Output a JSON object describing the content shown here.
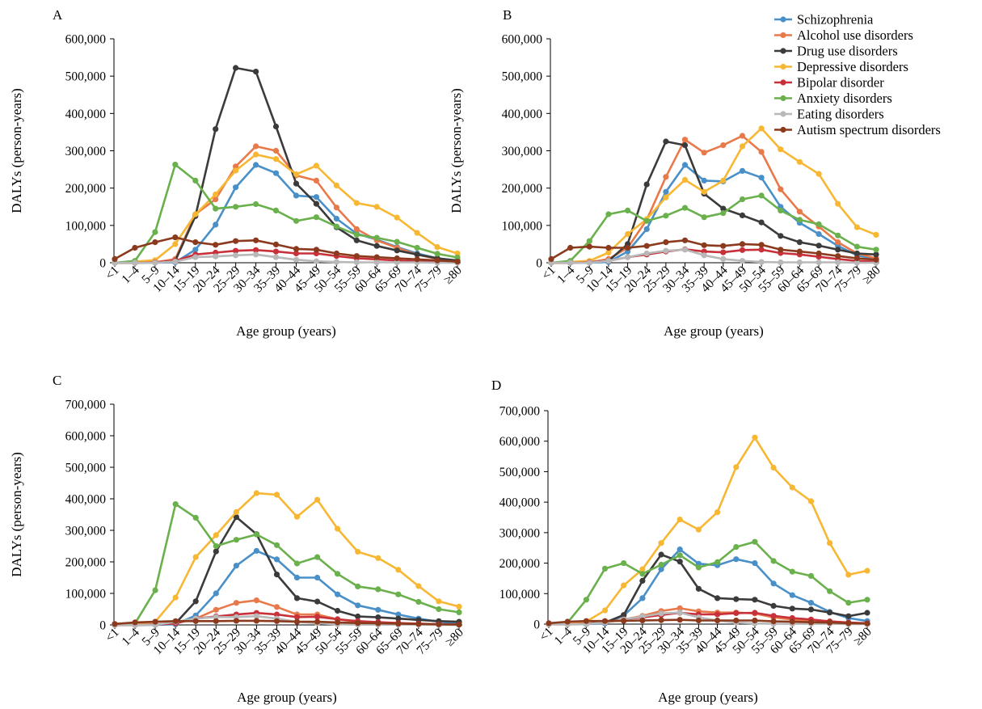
{
  "colors": {
    "Schizophrenia": "#4a90c8",
    "Alcohol use disorders": "#e8794a",
    "Drug use disorders": "#3b3b3b",
    "Depressive disorders": "#f7b733",
    "Bipolar disorder": "#c8303a",
    "Anxiety disorders": "#6ab04c",
    "Eating disorders": "#b8b8b8",
    "Autism spectrum disorders": "#8b3a1e"
  },
  "legend": {
    "placement": "top-right",
    "items": [
      "Schizophrenia",
      "Alcohol use disorders",
      "Drug use disorders",
      "Depressive disorders",
      "Bipolar disorder",
      "Anxiety disorders",
      "Eating disorders",
      "Autism spectrum disorders"
    ]
  },
  "chart_data": [
    {
      "type": "line",
      "panel": "A",
      "xlabel": "Age group (years)",
      "ylabel": "DALYs (person-years)",
      "ylim": [
        0,
        600000
      ],
      "yticks": [
        "0",
        "100,000",
        "200,000",
        "300,000",
        "400,000",
        "500,000",
        "600,000"
      ],
      "categories": [
        "<1",
        "1–4",
        "5–9",
        "10–14",
        "15–19",
        "20–24",
        "25–29",
        "30–34",
        "35–39",
        "40–44",
        "45–49",
        "50–54",
        "55–59",
        "60–64",
        "65–69",
        "70–74",
        "75–79",
        "≥80"
      ],
      "series": [
        {
          "name": "Schizophrenia",
          "values": [
            0,
            0,
            0,
            1000,
            35000,
            102000,
            202000,
            262000,
            240000,
            180000,
            176000,
            118000,
            78000,
            62000,
            42000,
            25000,
            12000,
            5000
          ]
        },
        {
          "name": "Alcohol use disorders",
          "values": [
            0,
            0,
            1000,
            10000,
            130000,
            170000,
            258000,
            312000,
            300000,
            234000,
            220000,
            148000,
            90000,
            60000,
            40000,
            22000,
            10000,
            5000
          ]
        },
        {
          "name": "Drug use disorders",
          "values": [
            0,
            0,
            1000,
            5000,
            125000,
            358000,
            522000,
            512000,
            365000,
            212000,
            158000,
            95000,
            60000,
            45000,
            33000,
            22000,
            12000,
            6000
          ]
        },
        {
          "name": "Depressive disorders",
          "values": [
            0,
            3000,
            7000,
            50000,
            130000,
            183000,
            247000,
            290000,
            278000,
            237000,
            260000,
            207000,
            160000,
            150000,
            121000,
            80000,
            42000,
            25000
          ]
        },
        {
          "name": "Bipolar disorder",
          "values": [
            0,
            0,
            1000,
            5000,
            22000,
            27000,
            32000,
            34000,
            30000,
            25000,
            25000,
            18000,
            12000,
            9000,
            6000,
            4000,
            2000,
            1000
          ]
        },
        {
          "name": "Anxiety disorders",
          "values": [
            0,
            5000,
            82000,
            263000,
            220000,
            145000,
            150000,
            157000,
            140000,
            112000,
            122000,
            97000,
            75000,
            67000,
            56000,
            40000,
            24000,
            14000
          ]
        },
        {
          "name": "Eating disorders",
          "values": [
            0,
            0,
            0,
            3000,
            15000,
            17000,
            20000,
            22000,
            15000,
            8000,
            4000,
            2000,
            1000,
            1000,
            1000,
            1000,
            0,
            0
          ]
        },
        {
          "name": "Autism spectrum disorders",
          "values": [
            10000,
            40000,
            55000,
            68000,
            55000,
            48000,
            58000,
            60000,
            49000,
            37000,
            35000,
            25000,
            18000,
            15000,
            12000,
            9000,
            6000,
            3000
          ]
        }
      ]
    },
    {
      "type": "line",
      "panel": "B",
      "xlabel": "Age group (years)",
      "ylabel": "DALYs (person-years)",
      "ylim": [
        0,
        600000
      ],
      "yticks": [
        "0",
        "100,000",
        "200,000",
        "300,000",
        "400,000",
        "500,000",
        "600,000"
      ],
      "categories": [
        "<1",
        "1–4",
        "5–9",
        "10–14",
        "15–19",
        "20–24",
        "25–29",
        "30–34",
        "35–39",
        "40–44",
        "45–49",
        "50–54",
        "55–59",
        "60–64",
        "65–69",
        "70–74",
        "75–79",
        "≥80"
      ],
      "series": [
        {
          "name": "Schizophrenia",
          "values": [
            0,
            0,
            0,
            2000,
            30000,
            90000,
            190000,
            262000,
            220000,
            218000,
            246000,
            228000,
            150000,
            107000,
            77000,
            45000,
            20000,
            10000
          ]
        },
        {
          "name": "Alcohol use disorders",
          "values": [
            0,
            0,
            1000,
            10000,
            40000,
            115000,
            230000,
            330000,
            295000,
            315000,
            340000,
            297000,
            197000,
            137000,
            97000,
            55000,
            25000,
            12000
          ]
        },
        {
          "name": "Drug use disorders",
          "values": [
            0,
            0,
            1000,
            5000,
            50000,
            210000,
            325000,
            315000,
            185000,
            145000,
            127000,
            108000,
            72000,
            55000,
            46000,
            35000,
            25000,
            22000
          ]
        },
        {
          "name": "Depressive disorders",
          "values": [
            0,
            2000,
            5000,
            27000,
            77000,
            117000,
            175000,
            222000,
            190000,
            220000,
            312000,
            360000,
            304000,
            270000,
            238000,
            158000,
            95000,
            75000
          ]
        },
        {
          "name": "Bipolar disorder",
          "values": [
            0,
            0,
            1000,
            5000,
            15000,
            22000,
            30000,
            36000,
            30000,
            28000,
            34000,
            35000,
            26000,
            22000,
            16000,
            10000,
            5000,
            3000
          ]
        },
        {
          "name": "Anxiety disorders",
          "values": [
            0,
            5000,
            58000,
            130000,
            140000,
            112000,
            126000,
            147000,
            122000,
            133000,
            170000,
            180000,
            140000,
            115000,
            103000,
            73000,
            43000,
            35000
          ]
        },
        {
          "name": "Eating disorders",
          "values": [
            0,
            0,
            0,
            5000,
            15000,
            25000,
            32000,
            35000,
            20000,
            10000,
            5000,
            2000,
            1000,
            1000,
            1000,
            1000,
            0,
            0
          ]
        },
        {
          "name": "Autism spectrum disorders",
          "values": [
            10000,
            40000,
            43000,
            40000,
            40000,
            45000,
            55000,
            60000,
            47000,
            45000,
            50000,
            48000,
            35000,
            30000,
            25000,
            18000,
            12000,
            8000
          ]
        }
      ]
    },
    {
      "type": "line",
      "panel": "C",
      "xlabel": "Age group (years)",
      "ylabel": "DALYs (person-years)",
      "ylim": [
        0,
        700000
      ],
      "yticks": [
        "0",
        "100,000",
        "200,000",
        "300,000",
        "400,000",
        "500,000",
        "600,000",
        "700,000"
      ],
      "categories": [
        "<1",
        "1–4",
        "5–9",
        "10–14",
        "15–19",
        "20–24",
        "25–29",
        "30–34",
        "35–39",
        "40–44",
        "45–49",
        "50–54",
        "55–59",
        "60–64",
        "65–69",
        "70–74",
        "75–79",
        "≥80"
      ],
      "series": [
        {
          "name": "Schizophrenia",
          "values": [
            0,
            0,
            0,
            2000,
            30000,
            100000,
            188000,
            235000,
            208000,
            150000,
            150000,
            97000,
            62000,
            48000,
            33000,
            20000,
            10000,
            5000
          ]
        },
        {
          "name": "Alcohol use disorders",
          "values": [
            0,
            0,
            1000,
            5000,
            20000,
            48000,
            70000,
            78000,
            57000,
            33000,
            33000,
            18000,
            10000,
            7000,
            5000,
            3000,
            1000,
            1000
          ]
        },
        {
          "name": "Drug use disorders",
          "values": [
            0,
            0,
            1000,
            5000,
            75000,
            233000,
            342000,
            288000,
            160000,
            85000,
            74000,
            45000,
            27000,
            24000,
            20000,
            16000,
            12000,
            10000
          ]
        },
        {
          "name": "Depressive disorders",
          "values": [
            0,
            3000,
            10000,
            87000,
            215000,
            285000,
            358000,
            418000,
            413000,
            343000,
            397000,
            305000,
            232000,
            212000,
            175000,
            123000,
            75000,
            58000
          ]
        },
        {
          "name": "Bipolar disorder",
          "values": [
            0,
            0,
            1000,
            5000,
            20000,
            27000,
            33000,
            38000,
            33000,
            25000,
            26000,
            18000,
            12000,
            9000,
            6000,
            4000,
            2000,
            1000
          ]
        },
        {
          "name": "Anxiety disorders",
          "values": [
            0,
            5000,
            110000,
            383000,
            340000,
            250000,
            270000,
            287000,
            253000,
            195000,
            215000,
            162000,
            122000,
            113000,
            97000,
            73000,
            50000,
            40000
          ]
        },
        {
          "name": "Eating disorders",
          "values": [
            0,
            0,
            0,
            10000,
            20000,
            25000,
            25000,
            28000,
            20000,
            10000,
            5000,
            2000,
            1000,
            1000,
            1000,
            1000,
            0,
            0
          ]
        },
        {
          "name": "Autism spectrum disorders",
          "values": [
            3000,
            8000,
            10000,
            12000,
            12000,
            12000,
            13000,
            13000,
            12000,
            10000,
            10000,
            8000,
            6000,
            5000,
            4000,
            3000,
            2000,
            1000
          ]
        }
      ]
    },
    {
      "type": "line",
      "panel": "D",
      "xlabel": "Age group (years)",
      "ylabel": "",
      "ylim": [
        0,
        700000
      ],
      "yticks": [
        "0",
        "100,000",
        "200,000",
        "300,000",
        "400,000",
        "500,000",
        "600,000",
        "700,000"
      ],
      "categories": [
        "<1",
        "1–4",
        "5–9",
        "10–14",
        "15–19",
        "20–24",
        "25–29",
        "30–34",
        "35–39",
        "40–44",
        "45–49",
        "50–54",
        "55–59",
        "60–64",
        "65–69",
        "70–74",
        "75–79",
        "≥80"
      ],
      "series": [
        {
          "name": "Schizophrenia",
          "values": [
            0,
            0,
            0,
            2000,
            28000,
            85000,
            180000,
            245000,
            198000,
            193000,
            213000,
            200000,
            133000,
            95000,
            70000,
            40000,
            20000,
            10000
          ]
        },
        {
          "name": "Alcohol use disorders",
          "values": [
            0,
            0,
            1000,
            5000,
            15000,
            27000,
            43000,
            52000,
            42000,
            38000,
            38000,
            35000,
            22000,
            15000,
            10000,
            5000,
            2000,
            1000
          ]
        },
        {
          "name": "Drug use disorders",
          "values": [
            0,
            0,
            1000,
            5000,
            30000,
            142000,
            228000,
            205000,
            116000,
            85000,
            82000,
            80000,
            60000,
            51000,
            48000,
            38000,
            26000,
            37000
          ]
        },
        {
          "name": "Depressive disorders",
          "values": [
            0,
            3000,
            8000,
            45000,
            127000,
            180000,
            266000,
            343000,
            310000,
            367000,
            515000,
            612000,
            513000,
            448000,
            403000,
            266000,
            162000,
            175000
          ]
        },
        {
          "name": "Bipolar disorder",
          "values": [
            0,
            0,
            1000,
            5000,
            16000,
            22000,
            30000,
            37000,
            32000,
            32000,
            36000,
            37000,
            27000,
            20000,
            15000,
            9000,
            5000,
            3000
          ]
        },
        {
          "name": "Anxiety disorders",
          "values": [
            0,
            5000,
            80000,
            182000,
            200000,
            165000,
            195000,
            226000,
            186000,
            203000,
            253000,
            270000,
            207000,
            172000,
            158000,
            108000,
            70000,
            80000
          ]
        },
        {
          "name": "Eating disorders",
          "values": [
            0,
            0,
            0,
            5000,
            15000,
            25000,
            35000,
            38000,
            22000,
            12000,
            5000,
            2000,
            1000,
            1000,
            1000,
            1000,
            0,
            0
          ]
        },
        {
          "name": "Autism spectrum disorders",
          "values": [
            3000,
            8000,
            10000,
            10000,
            11000,
            12000,
            13000,
            14000,
            12000,
            12000,
            12000,
            12000,
            9000,
            8000,
            6000,
            5000,
            3000,
            2000
          ]
        }
      ]
    }
  ]
}
